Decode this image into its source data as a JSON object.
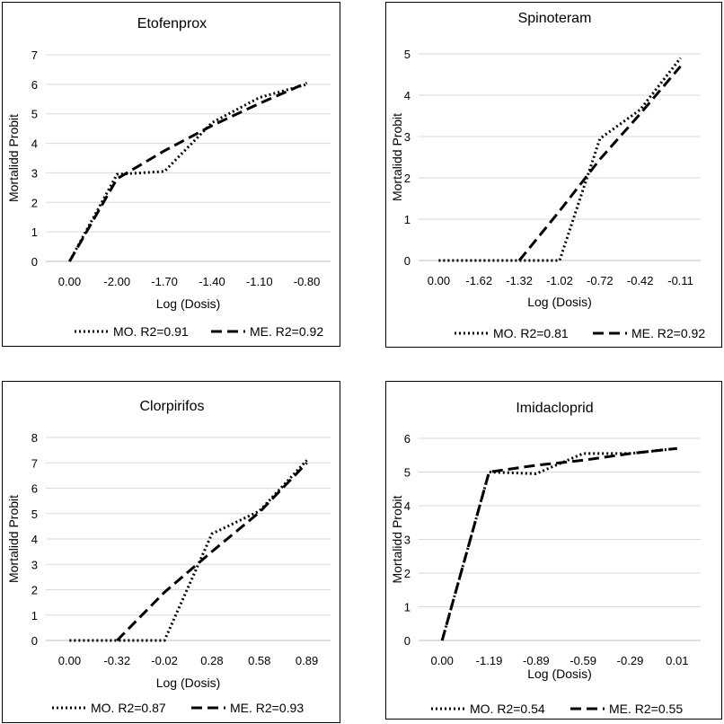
{
  "chart_data": [
    {
      "type": "line",
      "title": "Etofenprox",
      "xlabel": "Log (Dosis)",
      "ylabel": "Mortalidd Probit",
      "categories": [
        "0.00",
        "-2.00",
        "-1.70",
        "-1.40",
        "-1.10",
        "-0.80"
      ],
      "ylim": [
        0,
        7
      ],
      "yticks": [
        0,
        1,
        2,
        3,
        4,
        5,
        6,
        7
      ],
      "grid": true,
      "legend": "bottom",
      "series": [
        {
          "name": "MO. R2=0.91",
          "style": "dotted",
          "values": [
            0,
            2.95,
            3.05,
            4.7,
            5.55,
            6.0
          ]
        },
        {
          "name": "ME. R2=0.92",
          "style": "dashed",
          "values": [
            0,
            2.8,
            3.75,
            4.6,
            5.35,
            6.05
          ]
        }
      ]
    },
    {
      "type": "line",
      "title": "Spinoteram",
      "xlabel": "Log (Dosis)",
      "ylabel": "Mortalidd Probit",
      "categories": [
        "0.00",
        "-1.62",
        "-1.32",
        "-1.02",
        "-0.72",
        "-0.42",
        "-0.11"
      ],
      "ylim": [
        0,
        5
      ],
      "yticks": [
        0,
        1,
        2,
        3,
        4,
        5
      ],
      "grid": true,
      "legend": "bottom",
      "series": [
        {
          "name": "MO. R2=0.81",
          "style": "dotted",
          "values": [
            0,
            0,
            0,
            0,
            2.95,
            3.65,
            4.9
          ]
        },
        {
          "name": "ME. R2=0.92",
          "style": "dashed",
          "values": [
            null,
            null,
            0,
            1.2,
            2.45,
            3.55,
            4.7
          ]
        }
      ]
    },
    {
      "type": "line",
      "title": "Clorpirifos",
      "xlabel": "Log (Dosis)",
      "ylabel": "Mortalidd Probit",
      "categories": [
        "0.00",
        "-0.32",
        "-0.02",
        "0.28",
        "0.58",
        "0.89"
      ],
      "ylim": [
        0,
        8
      ],
      "yticks": [
        0,
        1,
        2,
        3,
        4,
        5,
        6,
        7,
        8
      ],
      "grid": true,
      "legend": "bottom",
      "series": [
        {
          "name": "MO. R2=0.87",
          "style": "dotted",
          "values": [
            0,
            0,
            0,
            4.2,
            5.1,
            7.1
          ]
        },
        {
          "name": "ME. R2=0.93",
          "style": "dashed",
          "values": [
            null,
            0,
            1.9,
            3.5,
            5.05,
            7.0
          ]
        }
      ]
    },
    {
      "type": "line",
      "title": "Imidacloprid",
      "xlabel": "Log (Dosis)",
      "ylabel": "Mortalidd Probit",
      "categories": [
        "0.00",
        "-1.19",
        "-0.89",
        "-0.59",
        "-0.29",
        "0.01"
      ],
      "ylim": [
        0,
        6
      ],
      "yticks": [
        0,
        1,
        2,
        3,
        4,
        5,
        6
      ],
      "grid": true,
      "legend": "bottom",
      "series": [
        {
          "name": "MO. R2=0.54",
          "style": "dotted",
          "values": [
            0,
            5.0,
            4.95,
            5.55,
            5.55,
            5.7
          ]
        },
        {
          "name": "ME. R2=0.55",
          "style": "dashed",
          "values": [
            0,
            5.0,
            5.2,
            5.35,
            5.55,
            5.7
          ]
        }
      ]
    }
  ]
}
